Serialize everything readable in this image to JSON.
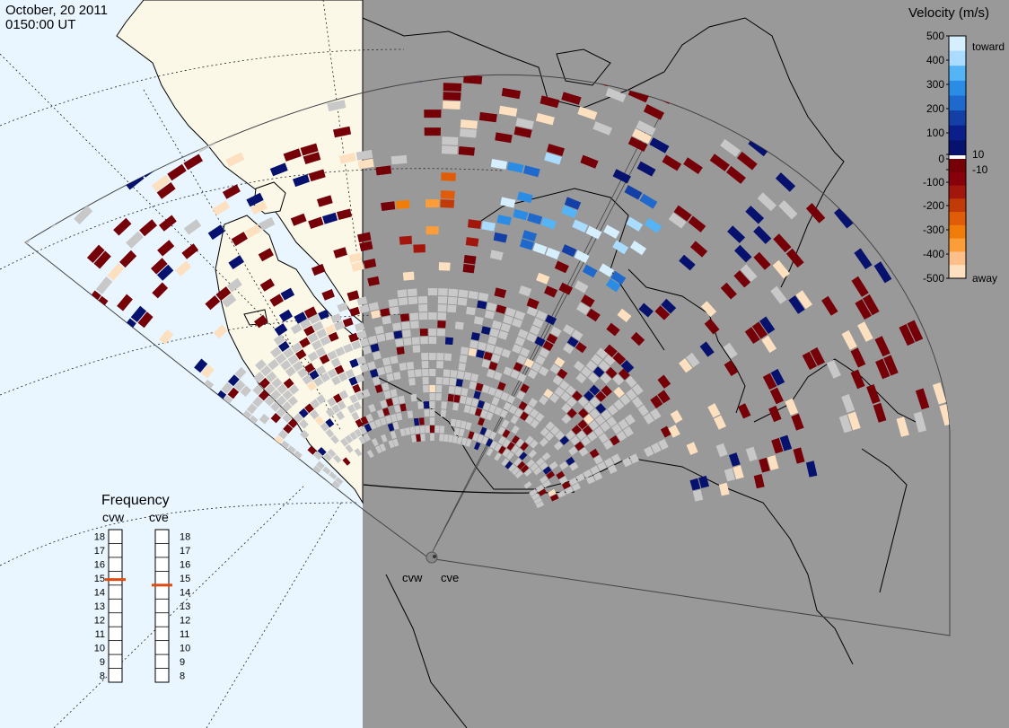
{
  "header": {
    "date": "October, 20 2011",
    "time": "0150:00 UT"
  },
  "velocity_scale": {
    "title": "Velocity (m/s)",
    "tick_labels": [
      "500",
      "400",
      "300",
      "200",
      "100",
      "10",
      "0",
      "-10",
      "-100",
      "-200",
      "-300",
      "-400",
      "-500"
    ],
    "end_labels": {
      "top": "toward",
      "bottom": "away"
    },
    "colors_toward": [
      "#d6efff",
      "#a9dcff",
      "#55b4f5",
      "#2b8ce6",
      "#1f68cc",
      "#143fa6",
      "#0a1f8a",
      "#06126d"
    ],
    "colors_away": [
      "#750008",
      "#87000a",
      "#a3160c",
      "#c23a08",
      "#e05c08",
      "#f07d0a",
      "#fb9e3a",
      "#fdc08a",
      "#fde0c0"
    ],
    "zero_color": "#ffffff",
    "ground_scatter_color": "#c8c8c8"
  },
  "frequency": {
    "title": "Frequency",
    "radars": [
      {
        "name": "cvw",
        "current": 14.9
      },
      {
        "name": "cve",
        "current": 14.5
      }
    ],
    "ticks": [
      "18",
      "17",
      "16",
      "15",
      "14",
      "13",
      "12",
      "11",
      "10",
      "9",
      "8"
    ],
    "marker_color": "#e04a10"
  },
  "radars": [
    {
      "name": "cvw"
    },
    {
      "name": "cve"
    }
  ],
  "map_colors": {
    "ocean_day": "#e9f6ff",
    "land_day": "#fbf8e8",
    "night": "#999999"
  }
}
